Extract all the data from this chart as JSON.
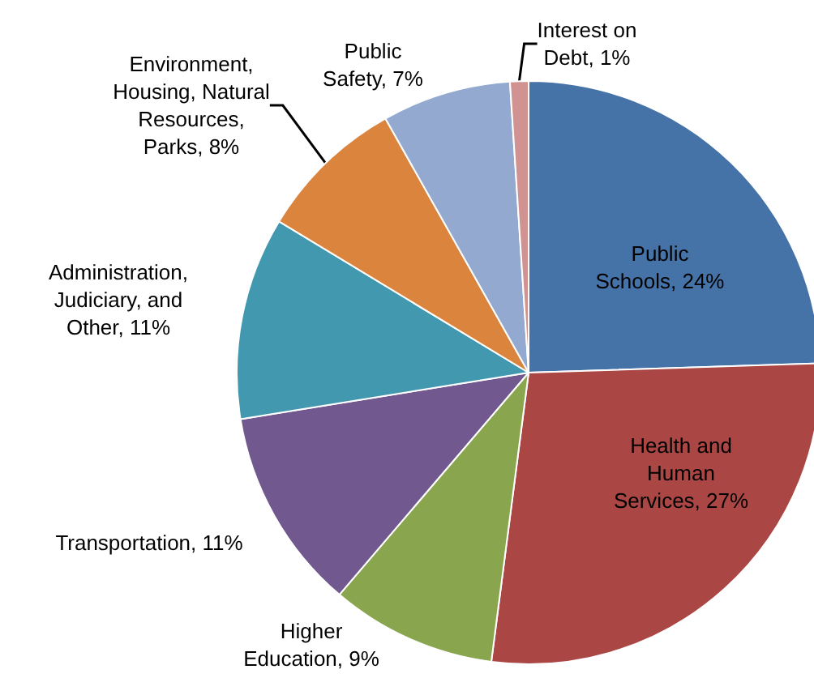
{
  "chart_data": {
    "type": "pie",
    "categories": [
      "Public Schools",
      "Health and Human Services",
      "Higher Education",
      "Transportation",
      "Administration, Judiciary, and Other",
      "Environment, Housing, Natural Resources, Parks",
      "Public Safety",
      "Interest on Debt"
    ],
    "values": [
      24,
      27,
      9,
      11,
      11,
      8,
      7,
      1
    ],
    "value_labels": [
      "24%",
      "27%",
      "9%",
      "11%",
      "11%",
      "8%",
      "7%",
      "1%"
    ],
    "colors": [
      "#4572a7",
      "#aa4643",
      "#89a54e",
      "#71588f",
      "#4198af",
      "#db843d",
      "#93a9cf",
      "#d19392"
    ],
    "legend": false
  }
}
